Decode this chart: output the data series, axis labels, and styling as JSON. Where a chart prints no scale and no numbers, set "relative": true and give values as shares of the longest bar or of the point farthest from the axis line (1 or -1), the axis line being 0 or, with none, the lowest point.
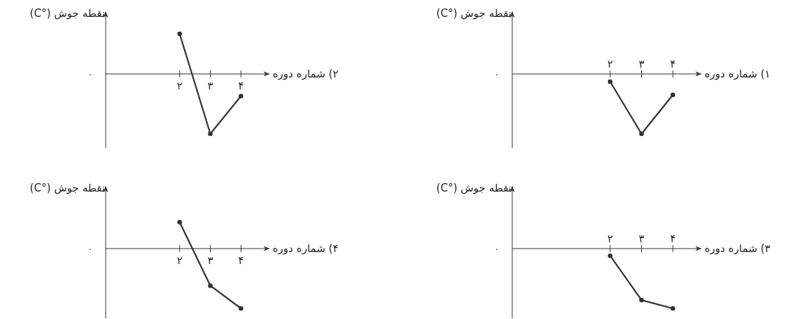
{
  "chart_data": [
    {
      "type": "line",
      "relative": true,
      "marker": "circle",
      "xlabel": "۱) شماره دوره",
      "ylabel": "نقطه جوش (°C)",
      "categories": [
        "۲",
        "۳",
        "۴"
      ],
      "series": [
        {
          "color": "#333333",
          "values": [
            -0.13,
            -1,
            -0.35
          ]
        }
      ],
      "annotations": [
        "۰"
      ]
    },
    {
      "type": "line",
      "relative": true,
      "marker": "circle",
      "xlabel": "۲) شماره دوره",
      "ylabel": "نقطه جوش (°C)",
      "categories": [
        "۲",
        "۳",
        "۴"
      ],
      "series": [
        {
          "color": "#333333",
          "values": [
            0.67,
            -1,
            -0.37
          ]
        }
      ],
      "annotations": [
        "۰"
      ]
    },
    {
      "type": "line",
      "relative": true,
      "marker": "circle",
      "xlabel": "۳) شماره دوره",
      "ylabel": "نقطه جوش (°C)",
      "categories": [
        "۲",
        "۳",
        "۴"
      ],
      "series": [
        {
          "color": "#333333",
          "values": [
            -0.12,
            -0.86,
            -1
          ]
        }
      ],
      "annotations": [
        "۰"
      ]
    },
    {
      "type": "line",
      "relative": true,
      "marker": "circle",
      "xlabel": "۴) شماره دوره",
      "ylabel": "نقطه جوش (°C)",
      "categories": [
        "۲",
        "۳",
        "۴"
      ],
      "series": [
        {
          "color": "#333333",
          "values": [
            0.44,
            -0.62,
            -1
          ]
        }
      ],
      "annotations": [
        "۰"
      ]
    }
  ]
}
